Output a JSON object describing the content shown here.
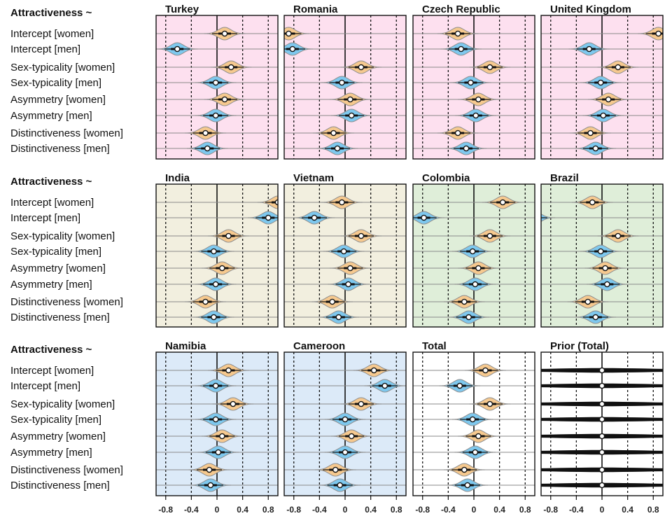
{
  "chart_data": {
    "type": "violin",
    "heading": "Attractiveness ~",
    "row_labels": [
      "Intercept [women]",
      "Intercept [men]",
      "Sex-typicality [women]",
      "Sex-typicality [men]",
      "Asymmetry [women]",
      "Asymmetry [men]",
      "Distinctiveness [women]",
      "Distinctiveness [men]"
    ],
    "x_ticks": [
      "-0.8",
      "-0.4",
      "0",
      "0.4",
      "0.8"
    ],
    "x_tick_values": [
      -0.8,
      -0.4,
      0,
      0.4,
      0.8
    ],
    "xlim": [
      -0.95,
      0.95
    ],
    "colors": {
      "women": "#f6c98f",
      "men": "#7ec8ee",
      "prior": "#111111"
    },
    "panels": [
      {
        "name": "Turkey",
        "bg": "#fde0ef",
        "means": [
          0.12,
          -0.62,
          0.22,
          -0.02,
          0.12,
          -0.02,
          -0.18,
          -0.15
        ]
      },
      {
        "name": "Romania",
        "bg": "#fde0ef",
        "means": [
          -0.88,
          -0.82,
          0.25,
          -0.05,
          0.08,
          0.1,
          -0.18,
          -0.12
        ]
      },
      {
        "name": "Czech Republic",
        "bg": "#fde0ef",
        "means": [
          -0.25,
          -0.2,
          0.25,
          -0.05,
          0.07,
          0.03,
          -0.25,
          -0.12
        ]
      },
      {
        "name": "United Kingdom",
        "bg": "#fde0ef",
        "means": [
          0.88,
          -0.2,
          0.25,
          -0.02,
          0.1,
          0.02,
          -0.18,
          -0.1
        ]
      },
      {
        "name": "India",
        "bg": "#f2efdf",
        "means": [
          0.95,
          0.8,
          0.18,
          -0.05,
          0.08,
          -0.02,
          -0.18,
          -0.05
        ]
      },
      {
        "name": "Vietnam",
        "bg": "#f2efdf",
        "means": [
          -0.05,
          -0.48,
          0.25,
          -0.02,
          0.08,
          0.05,
          -0.2,
          -0.1
        ]
      },
      {
        "name": "Colombia",
        "bg": "#dfeed9",
        "means": [
          0.45,
          -0.78,
          0.25,
          -0.02,
          0.07,
          0.02,
          -0.15,
          -0.08
        ]
      },
      {
        "name": "Brazil",
        "bg": "#dfeed9",
        "means": [
          -0.15,
          -1.05,
          0.25,
          -0.02,
          0.05,
          0.08,
          -0.22,
          -0.1
        ]
      },
      {
        "name": "Namibia",
        "bg": "#dceaf8",
        "means": [
          0.18,
          -0.02,
          0.25,
          -0.02,
          0.08,
          0.02,
          -0.12,
          -0.1
        ]
      },
      {
        "name": "Cameroon",
        "bg": "#dceaf8",
        "means": [
          0.45,
          0.62,
          0.25,
          0.0,
          0.1,
          0.0,
          -0.15,
          -0.08
        ]
      },
      {
        "name": "Total",
        "bg": "#ffffff",
        "means": [
          0.18,
          -0.22,
          0.25,
          -0.02,
          0.07,
          0.02,
          -0.15,
          -0.1
        ]
      },
      {
        "name": "Prior (Total)",
        "bg": "#ffffff",
        "prior": true,
        "means": [
          0,
          0,
          0,
          0,
          0,
          0,
          0,
          0
        ]
      }
    ]
  }
}
